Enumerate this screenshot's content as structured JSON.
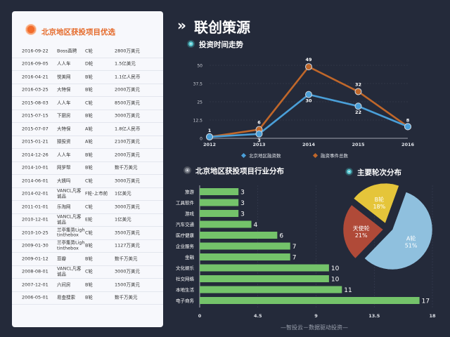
{
  "left_panel": {
    "title": "北京地区获投项目优选",
    "rows": [
      {
        "date": "2016-09-22",
        "company": "Boss直聘",
        "round": "C轮",
        "amount": "2800万美元"
      },
      {
        "date": "2016-09-05",
        "company": "人人车",
        "round": "D轮",
        "amount": "1.5亿美元"
      },
      {
        "date": "2016-04-21",
        "company": "悦美网",
        "round": "B轮",
        "amount": "1.1亿人民币"
      },
      {
        "date": "2016-03-25",
        "company": "大特保",
        "round": "B轮",
        "amount": "2000万美元"
      },
      {
        "date": "2015-08-03",
        "company": "人人车",
        "round": "C轮",
        "amount": "8500万美元"
      },
      {
        "date": "2015-07-15",
        "company": "下厨房",
        "round": "B轮",
        "amount": "3000万美元"
      },
      {
        "date": "2015-07-07",
        "company": "大特保",
        "round": "A轮",
        "amount": "1.8亿人民币"
      },
      {
        "date": "2015-01-21",
        "company": "猿投资",
        "round": "A轮",
        "amount": "2100万美元"
      },
      {
        "date": "2014-12-26",
        "company": "人人车",
        "round": "B轮",
        "amount": "2000万美元"
      },
      {
        "date": "2014-10-01",
        "company": "网罗帮",
        "round": "B轮",
        "amount": "数千万美元"
      },
      {
        "date": "2014-06-01",
        "company": "大姨吗",
        "round": "C轮",
        "amount": "3000万美元"
      },
      {
        "date": "2014-02-01",
        "company": "VANCL凡客诚品",
        "round": "F轮-上市前",
        "amount": "1亿美元"
      },
      {
        "date": "2011-01-01",
        "company": "乐淘网",
        "round": "C轮",
        "amount": "3000万美元"
      },
      {
        "date": "2010-12-01",
        "company": "VANCL凡客诚品",
        "round": "E轮",
        "amount": "1亿美元"
      },
      {
        "date": "2010-10-25",
        "company": "兰亭集势Lightinthebox",
        "round": "C轮",
        "amount": "3500万美元"
      },
      {
        "date": "2009-01-30",
        "company": "兰亭集势Lightinthebox",
        "round": "B轮",
        "amount": "1127万美元"
      },
      {
        "date": "2009-01-12",
        "company": "豆瓣",
        "round": "B轮",
        "amount": "数千万美元"
      },
      {
        "date": "2008-08-01",
        "company": "VANCL凡客诚品",
        "round": "C轮",
        "amount": "3000万美元"
      },
      {
        "date": "2007-12-01",
        "company": "六间房",
        "round": "B轮",
        "amount": "1500万美元"
      },
      {
        "date": "2006-05-01",
        "company": "易查搜索",
        "round": "B轮",
        "amount": "数千万美元"
      }
    ]
  },
  "header": {
    "prefix": "»",
    "title": "联创策源"
  },
  "footer": "—智投云－数据驱动投资—",
  "colors": {
    "blue": "#4a9fd8",
    "orange": "#c0672a",
    "green": "#74c36a",
    "pie_blue": "#8fc0de",
    "pie_red": "#b04a38",
    "pie_yellow": "#e5c53a"
  },
  "chart_data": [
    {
      "type": "line",
      "title": "投资时间走势",
      "x": [
        "2012",
        "2013",
        "2014",
        "2015",
        "2016"
      ],
      "ylim": [
        0,
        50
      ],
      "yticks": [
        "0",
        "12.5",
        "25",
        "37.5",
        "50"
      ],
      "legend": "bottom",
      "series": [
        {
          "name": "北京地区融资数",
          "values": [
            1,
            3,
            30,
            22,
            8
          ],
          "labels": [
            "1",
            "3",
            "30",
            "22",
            ""
          ]
        },
        {
          "name": "融资事件总数",
          "values": [
            1,
            6,
            49,
            32,
            8
          ],
          "labels": [
            "",
            "6",
            "49",
            "32",
            "8"
          ]
        }
      ]
    },
    {
      "type": "bar",
      "orientation": "horizontal",
      "title": "北京地区获投项目行业分布",
      "categories": [
        "旅游",
        "工具软件",
        "游戏",
        "汽车交通",
        "医疗健康",
        "企业服务",
        "金融",
        "文化娱乐",
        "社交网络",
        "本地生活",
        "电子商务"
      ],
      "values": [
        3,
        3,
        3,
        4,
        6,
        7,
        7,
        10,
        10,
        11,
        17
      ],
      "xlim": [
        0,
        18
      ],
      "xticks": [
        "0",
        "4.5",
        "9",
        "13.5",
        "18"
      ]
    },
    {
      "type": "pie",
      "title": "主要轮次分布",
      "slices": [
        {
          "label": "A轮",
          "percent": "51%",
          "value": 51
        },
        {
          "label": "天使轮",
          "percent": "21%",
          "value": 21
        },
        {
          "label": "B轮",
          "percent": "18%",
          "value": 18
        }
      ]
    }
  ]
}
